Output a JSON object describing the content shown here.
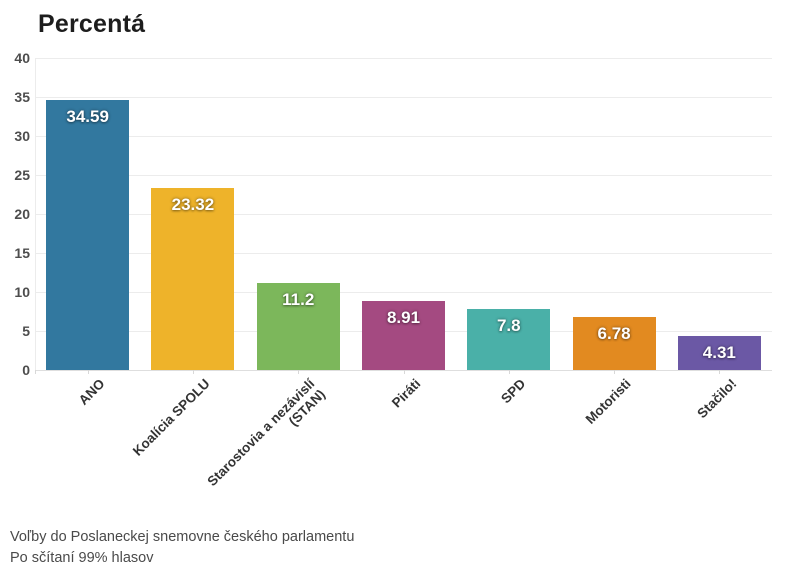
{
  "title": "Percentá",
  "footer": {
    "line1": "Voľby do Poslaneckej snemovne českého parlamentu",
    "line2": "Po sčítaní 99% hlasov"
  },
  "chart_data": {
    "type": "bar",
    "title": "Percentá",
    "categories": [
      "ANO",
      "Koalícia SPOLU",
      "Starostovia a nezávislí\n(STAN)",
      "Piráti",
      "SPD",
      "Motoristi",
      "Stačilo!"
    ],
    "values": [
      34.59,
      23.32,
      11.2,
      8.91,
      7.8,
      6.78,
      4.31
    ],
    "value_labels": [
      "34.59",
      "23.32",
      "11.2",
      "8.91",
      "7.8",
      "6.78",
      "4.31"
    ],
    "bar_colors": [
      "#32789f",
      "#eeb32a",
      "#7cb75b",
      "#a44a81",
      "#4ab0a8",
      "#e28a20",
      "#6b58a5"
    ],
    "xlabel": "",
    "ylabel": "",
    "ylim": [
      0,
      40
    ],
    "y_ticks": [
      0,
      5,
      10,
      15,
      20,
      25,
      30,
      35,
      40
    ],
    "grid": true,
    "legend": false,
    "grid_color": "#ececec",
    "title_color": "#1d1d1d",
    "axis_label_color": "#4d4d4d",
    "category_label_color": "#333333"
  }
}
